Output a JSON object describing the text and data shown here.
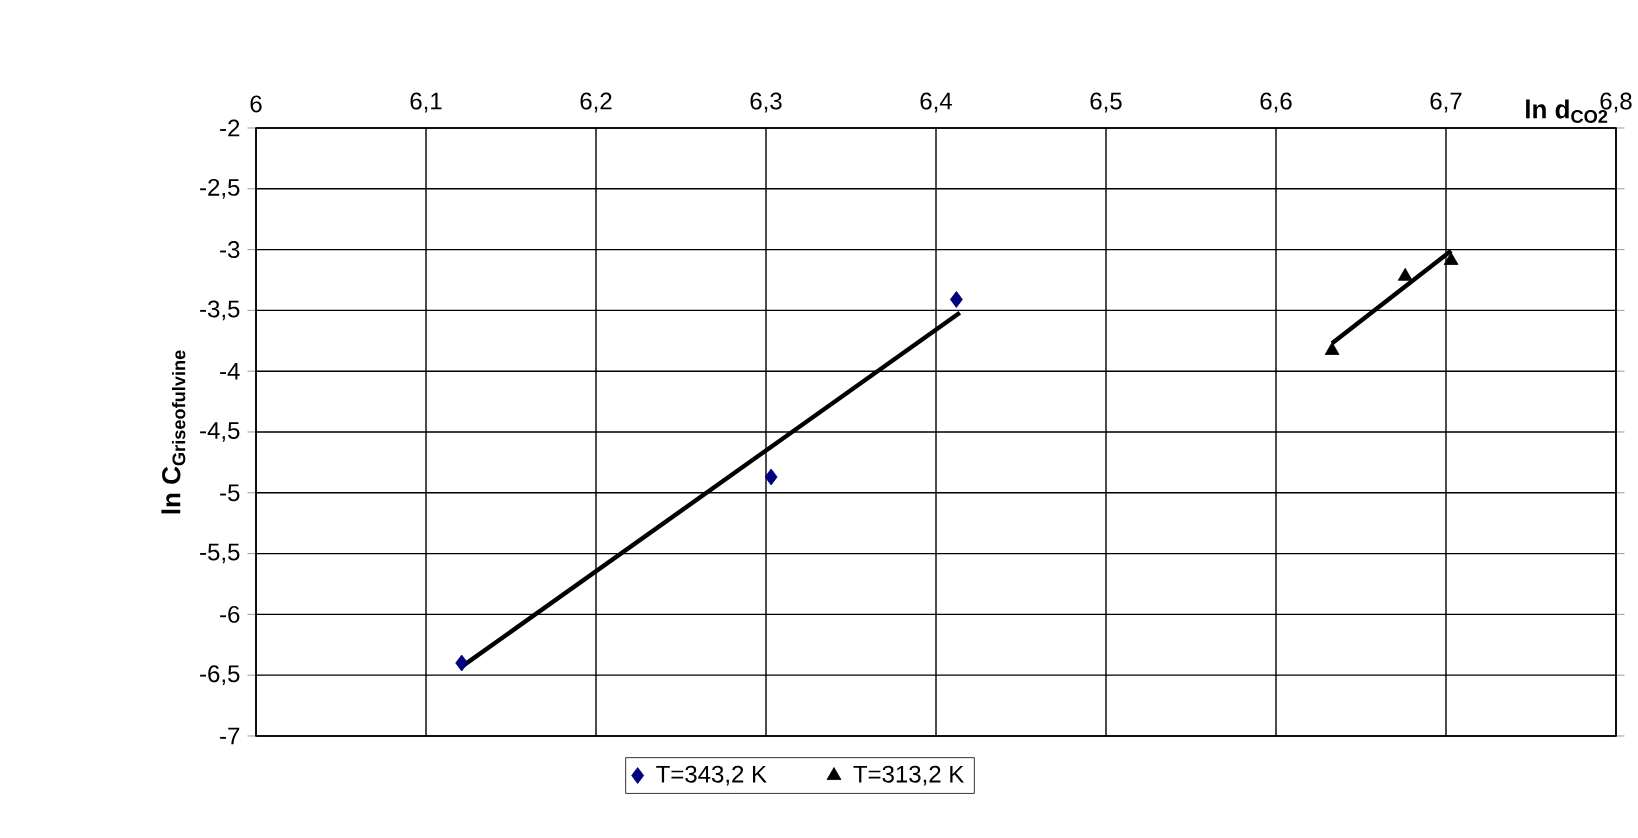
{
  "chart_data": {
    "type": "scatter",
    "xlabel": "ln d$_{CO2}$",
    "ylabel": "\\mathbf{ln\\ C_{Griseofulvine}}",
    "xlim": [
      6,
      6.8
    ],
    "ylim": [
      -7,
      -2
    ],
    "xticks": [
      6,
      {
        "value": 6.1,
        "label": "6,1"
      },
      {
        "value": 6.2,
        "label": "6,2"
      },
      {
        "value": 6.3,
        "label": "6,3"
      },
      {
        "value": 6.4,
        "label": "6,4"
      },
      {
        "value": 6.5,
        "label": "6,5"
      },
      {
        "value": 6.6,
        "label": "6,6"
      },
      {
        "value": 6.7,
        "label": "6,7"
      },
      {
        "value": 6.8,
        "label": "6,8"
      }
    ],
    "yticks": [
      -7,
      {
        "value": -6.5,
        "label": "-6,5"
      },
      -6,
      {
        "value": -5.5,
        "label": "-5,5"
      },
      -5,
      {
        "value": -4.5,
        "label": "-4,5"
      },
      -4,
      {
        "value": -3.5,
        "label": "-3,5"
      },
      -3,
      {
        "value": -2.5,
        "label": "-2,5"
      },
      -2
    ],
    "grid": true,
    "legend": "bottom",
    "series": [
      {
        "name": "T=343,2 K",
        "marker": "diamond",
        "color": "#000080",
        "x": [
          6.121,
          6.303,
          6.412
        ],
        "values": [
          -6.4,
          -4.87,
          -3.41
        ]
      },
      {
        "name": "T=313,2 K",
        "marker": "triangle",
        "color": "#000000",
        "x": [
          6.633,
          6.676,
          6.703
        ],
        "values": [
          -3.83,
          -3.22,
          -3.09
        ]
      },
      {
        "type": "line",
        "marker": "none",
        "color": "#000000",
        "x": [
          6.121,
          6.414
        ],
        "values": [
          -6.43,
          -3.52
        ]
      },
      {
        "type": "line",
        "marker": "none",
        "color": "#000000",
        "x": [
          6.633,
          6.703
        ],
        "values": [
          -3.77,
          -3.01
        ]
      }
    ]
  }
}
